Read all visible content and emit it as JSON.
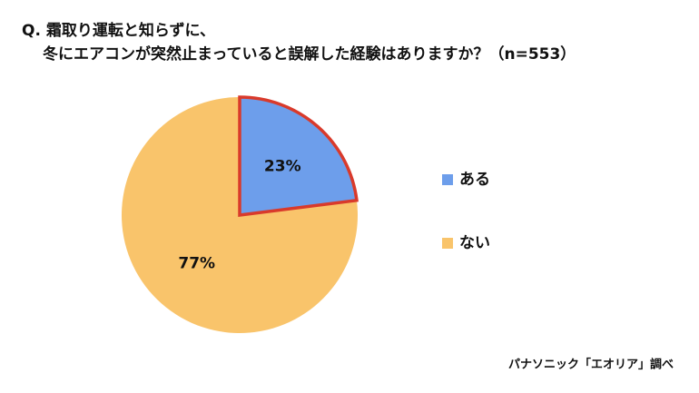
{
  "chart_data": {
    "type": "pie",
    "title": [
      "Q. 霜取り運転と知らずに、",
      "冬にエアコンが突然止まっていると誤解した経験はありますか？（n=553）"
    ],
    "categories": [
      "ある",
      "ない"
    ],
    "values": [
      23,
      77
    ],
    "value_labels": [
      "23%",
      "77%"
    ],
    "colors": [
      "#6d9eeb",
      "#f9c46b"
    ],
    "edge_colors": [
      "#d93a2b",
      "none"
    ],
    "legend": "right",
    "source": "パナソニック「エオリア」調べ"
  }
}
